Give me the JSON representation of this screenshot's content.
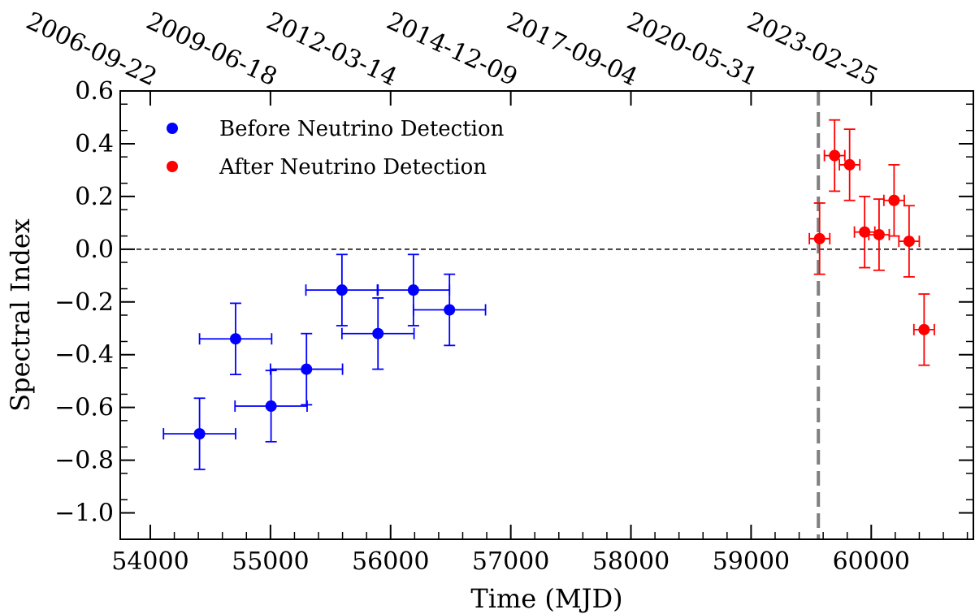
{
  "chart_data": {
    "type": "scatter",
    "xlabel": "Time (MJD)",
    "ylabel": "Spectral Index",
    "xlim": [
      53750,
      60850
    ],
    "ylim": [
      -1.1,
      0.6
    ],
    "x_ticks": [
      54000,
      55000,
      56000,
      57000,
      58000,
      59000,
      60000
    ],
    "x_tick_labels": [
      "54000",
      "55000",
      "56000",
      "57000",
      "58000",
      "59000",
      "60000"
    ],
    "y_ticks": [
      -1.0,
      -0.8,
      -0.6,
      -0.4,
      -0.2,
      0.0,
      0.2,
      0.4,
      0.6
    ],
    "y_tick_labels": [
      "−1.0",
      "−0.8",
      "−0.6",
      "−0.4",
      "−0.2",
      "0.0",
      "0.2",
      "0.4",
      "0.6"
    ],
    "top_axis": {
      "ticks_mjd": [
        54000,
        55000,
        56000,
        57000,
        58000,
        59000,
        60000
      ],
      "labels": [
        "2006-09-22",
        "2009-06-18",
        "2012-03-14",
        "2014-12-09",
        "2017-09-04",
        "2020-05-31",
        "2023-02-25"
      ]
    },
    "reference_lines": [
      {
        "orientation": "horizontal",
        "value": 0.0,
        "style": "dashed",
        "color": "#000000"
      },
      {
        "orientation": "vertical",
        "value": 59560,
        "style": "dashed",
        "color": "#808080"
      }
    ],
    "legend": {
      "placement": "top-left",
      "entries": [
        {
          "label": "Before Neutrino Detection",
          "color": "#0000ff"
        },
        {
          "label": "After Neutrino Detection",
          "color": "#ff0000"
        }
      ]
    },
    "series": [
      {
        "name": "Before Neutrino Detection",
        "color": "#0000ff",
        "points": [
          {
            "x": 54410,
            "y": -0.7,
            "xerr": 300,
            "yerr": 0.135
          },
          {
            "x": 54710,
            "y": -0.34,
            "xerr": 300,
            "yerr": 0.135
          },
          {
            "x": 55005,
            "y": -0.595,
            "xerr": 300,
            "yerr": 0.135
          },
          {
            "x": 55300,
            "y": -0.455,
            "xerr": 300,
            "yerr": 0.135
          },
          {
            "x": 55595,
            "y": -0.155,
            "xerr": 300,
            "yerr": 0.135
          },
          {
            "x": 55895,
            "y": -0.32,
            "xerr": 300,
            "yerr": 0.135
          },
          {
            "x": 56190,
            "y": -0.155,
            "xerr": 300,
            "yerr": 0.135
          },
          {
            "x": 56490,
            "y": -0.23,
            "xerr": 300,
            "yerr": 0.135
          }
        ]
      },
      {
        "name": "After Neutrino Detection",
        "color": "#ff0000",
        "points": [
          {
            "x": 59570,
            "y": 0.04,
            "xerr": 85,
            "yerr": 0.135
          },
          {
            "x": 59695,
            "y": 0.355,
            "xerr": 85,
            "yerr": 0.135
          },
          {
            "x": 59820,
            "y": 0.32,
            "xerr": 85,
            "yerr": 0.135
          },
          {
            "x": 59945,
            "y": 0.065,
            "xerr": 85,
            "yerr": 0.135
          },
          {
            "x": 60065,
            "y": 0.055,
            "xerr": 85,
            "yerr": 0.135
          },
          {
            "x": 60190,
            "y": 0.185,
            "xerr": 85,
            "yerr": 0.135
          },
          {
            "x": 60315,
            "y": 0.03,
            "xerr": 85,
            "yerr": 0.135
          },
          {
            "x": 60440,
            "y": -0.305,
            "xerr": 85,
            "yerr": 0.135
          }
        ]
      }
    ]
  }
}
